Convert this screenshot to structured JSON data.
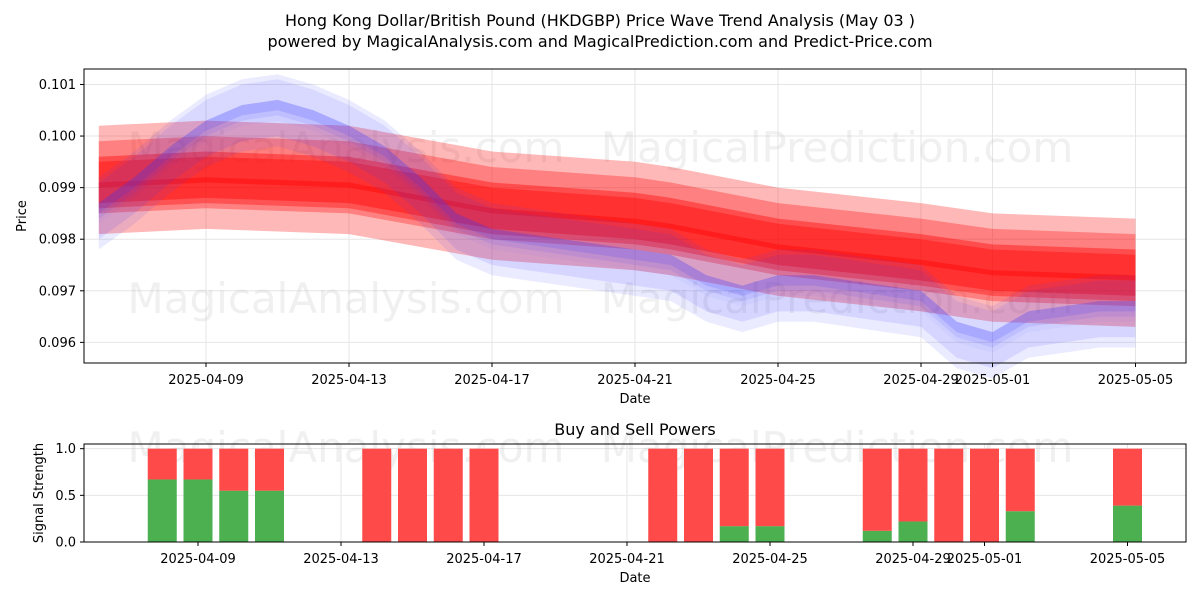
{
  "figure": {
    "title_line1": "Hong Kong Dollar/British Pound (HKDGBP) Price Wave Trend Analysis (May 03 )",
    "title_line2": "powered by MagicalAnalysis.com and MagicalPrediction.com and Predict-Price.com",
    "watermarks": [
      "MagicalAnalysis.com",
      "MagicalPrediction.com"
    ]
  },
  "colors": {
    "buy": "#4caf50",
    "sell": "#ff4a4a",
    "forecast": "#ff0000",
    "wave": "#3b3bff",
    "grid": "#e6e6e6"
  },
  "chart_data": [
    {
      "type": "area",
      "title": "",
      "xlabel": "Date",
      "ylabel": "Price",
      "x_ticks": [
        "2025-04-09",
        "2025-04-13",
        "2025-04-17",
        "2025-04-21",
        "2025-04-25",
        "2025-04-29",
        "2025-05-01",
        "2025-05-05"
      ],
      "y_ticks": [
        "0.096",
        "0.097",
        "0.098",
        "0.099",
        "0.100",
        "0.101"
      ],
      "xlim": [
        "2025-04-05",
        "2025-05-06"
      ],
      "ylim": [
        0.0956,
        0.1013
      ],
      "grid": true,
      "series": [
        {
          "style": "wave-bands",
          "dates": [
            "2025-04-06",
            "2025-04-07",
            "2025-04-08",
            "2025-04-09",
            "2025-04-10",
            "2025-04-11",
            "2025-04-12",
            "2025-04-13",
            "2025-04-14",
            "2025-04-15",
            "2025-04-16",
            "2025-04-17",
            "2025-04-18",
            "2025-04-19",
            "2025-04-20",
            "2025-04-21",
            "2025-04-22",
            "2025-04-23",
            "2025-04-24",
            "2025-04-25",
            "2025-04-26",
            "2025-04-27",
            "2025-04-28",
            "2025-04-29",
            "2025-04-30",
            "2025-05-01",
            "2025-05-02",
            "2025-05-03",
            "2025-05-04",
            "2025-05-05"
          ],
          "values": [
            0.0985,
            0.099,
            0.0996,
            0.1001,
            0.1004,
            0.1005,
            0.1003,
            0.1,
            0.0996,
            0.099,
            0.0983,
            0.098,
            0.0979,
            0.0978,
            0.0977,
            0.0976,
            0.0975,
            0.0971,
            0.0969,
            0.0971,
            0.0971,
            0.097,
            0.0969,
            0.0968,
            0.0962,
            0.096,
            0.0964,
            0.0965,
            0.0966,
            0.0966
          ]
        },
        {
          "style": "forecast-bands",
          "dates": [
            "2025-04-06",
            "2025-04-09",
            "2025-04-13",
            "2025-04-17",
            "2025-04-21",
            "2025-04-22",
            "2025-04-25",
            "2025-04-29",
            "2025-05-01",
            "2025-05-05"
          ],
          "values": [
            0.0992,
            0.0993,
            0.0992,
            0.0987,
            0.0985,
            0.0984,
            0.098,
            0.0977,
            0.0975,
            0.0974
          ]
        }
      ]
    },
    {
      "type": "bar",
      "stacked": true,
      "title": "Buy and Sell Powers",
      "xlabel": "Date",
      "ylabel": "Signal Strength",
      "x_ticks": [
        "2025-04-09",
        "2025-04-13",
        "2025-04-17",
        "2025-04-21",
        "2025-04-25",
        "2025-04-29",
        "2025-05-01",
        "2025-05-05"
      ],
      "y_ticks": [
        "0.0",
        "0.5",
        "1.0"
      ],
      "ylim": [
        0,
        1.05
      ],
      "categories": [
        "2025-04-08",
        "2025-04-09",
        "2025-04-10",
        "2025-04-11",
        "2025-04-14",
        "2025-04-15",
        "2025-04-16",
        "2025-04-17",
        "2025-04-22",
        "2025-04-23",
        "2025-04-24",
        "2025-04-25",
        "2025-04-28",
        "2025-04-29",
        "2025-04-30",
        "2025-05-01",
        "2025-05-02",
        "2025-05-05"
      ],
      "series": [
        {
          "name": "Buy",
          "values": [
            0.67,
            0.67,
            0.55,
            0.55,
            0,
            0,
            0,
            0,
            0,
            0,
            0.17,
            0.17,
            0.12,
            0.22,
            0,
            0,
            0.33,
            0.39
          ]
        },
        {
          "name": "Sell",
          "values": [
            0.33,
            0.33,
            0.45,
            0.45,
            1,
            1,
            1,
            1,
            1,
            1,
            0.83,
            0.83,
            0.88,
            0.78,
            1,
            1,
            0.67,
            0.61
          ]
        }
      ]
    }
  ]
}
